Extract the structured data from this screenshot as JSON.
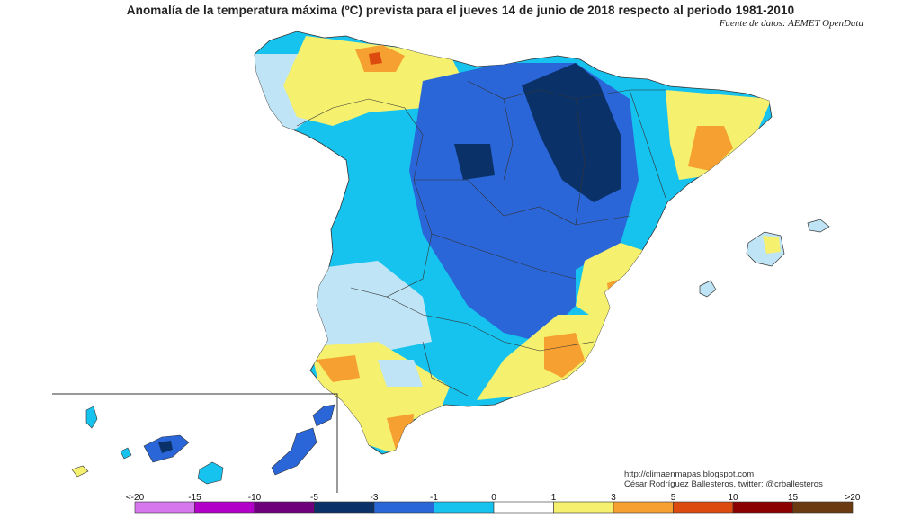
{
  "title": "Anomalía de la temperatura máxima (ºC) prevista para el jueves 14 de junio de 2018 respecto al periodo 1981-2010",
  "source": "Fuente de datos: AEMET OpenData",
  "credits": {
    "line1": "http://climaenmapas.blogspot.com",
    "line2": "César Rodríguez Ballesteros, twitter: @crballesteros"
  },
  "legend": {
    "labels": [
      "<-20",
      "-15",
      "-10",
      "-5",
      "-3",
      "-1",
      "0",
      "1",
      "3",
      "5",
      "10",
      "15",
      ">20"
    ],
    "colors": [
      "#d777ee",
      "#b300c8",
      "#6e007c",
      "#0b3268",
      "#2a66d8",
      "#16c3ee",
      "#bfe4f5",
      "#ffffff",
      "#f5f06d",
      "#f5a030",
      "#dd4a10",
      "#8b0000",
      "#6b3a10"
    ]
  },
  "map_colors": {
    "strong_cold": "#0b3268",
    "cold": "#2a66d8",
    "cool": "#16c3ee",
    "slight_cool": "#bfe4f5",
    "neutral": "#ffffff",
    "slight_warm": "#f5f06d",
    "warm": "#f5a030",
    "hot": "#dd4a10"
  }
}
